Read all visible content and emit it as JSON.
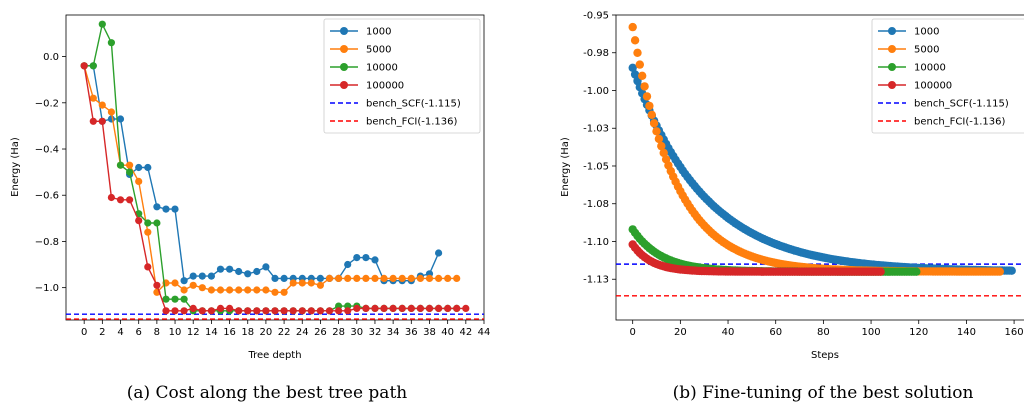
{
  "captions": {
    "left": "(a) Cost along the best tree path",
    "right": "(b) Fine-tuning of the best solution"
  },
  "colors": {
    "s1000": "#1f77b4",
    "s5000": "#ff7f0e",
    "s10000": "#2ca02c",
    "s100000": "#d62728",
    "scf": "#0000ff",
    "fci": "#ff0000"
  },
  "chart_data": [
    {
      "type": "line",
      "xlabel": "Tree depth",
      "ylabel": "Energy (Ha)",
      "xlim": [
        -2,
        44
      ],
      "ylim": [
        -1.14,
        0.18
      ],
      "xticks": [
        0,
        2,
        4,
        6,
        8,
        10,
        12,
        14,
        16,
        18,
        20,
        22,
        24,
        26,
        28,
        30,
        32,
        34,
        36,
        38,
        40,
        42,
        44
      ],
      "yticks": [
        0.0,
        -0.2,
        -0.4,
        -0.6,
        -0.8,
        -1.0
      ],
      "ytick_labels": [
        "0.0",
        "−0.2",
        "−0.4",
        "−0.6",
        "−0.8",
        "−1.0"
      ],
      "grid": false,
      "legend_position": "top-right",
      "series": [
        {
          "name": "1000",
          "color": "#1f77b4",
          "x": [
            0,
            1,
            2,
            3,
            4,
            5,
            6,
            7,
            8,
            9,
            10,
            11,
            12,
            13,
            14,
            15,
            16,
            17,
            18,
            19,
            20,
            21,
            22,
            23,
            24,
            25,
            26,
            27,
            28,
            29,
            30,
            31,
            32,
            33,
            34,
            35,
            36,
            37,
            38,
            39
          ],
          "values": [
            -0.04,
            -0.04,
            -0.28,
            -0.27,
            -0.27,
            -0.51,
            -0.48,
            -0.48,
            -0.65,
            -0.66,
            -0.66,
            -0.97,
            -0.95,
            -0.95,
            -0.95,
            -0.92,
            -0.92,
            -0.93,
            -0.94,
            -0.93,
            -0.91,
            -0.96,
            -0.96,
            -0.96,
            -0.96,
            -0.96,
            -0.96,
            -0.96,
            -0.96,
            -0.9,
            -0.87,
            -0.87,
            -0.88,
            -0.97,
            -0.97,
            -0.97,
            -0.97,
            -0.95,
            -0.94,
            -0.85
          ]
        },
        {
          "name": "5000",
          "color": "#ff7f0e",
          "x": [
            0,
            1,
            2,
            3,
            4,
            5,
            6,
            7,
            8,
            9,
            10,
            11,
            12,
            13,
            14,
            15,
            16,
            17,
            18,
            19,
            20,
            21,
            22,
            23,
            24,
            25,
            26,
            27,
            28,
            29,
            30,
            31,
            32,
            33,
            34,
            35,
            36,
            37,
            38,
            39,
            40,
            41
          ],
          "values": [
            -0.04,
            -0.18,
            -0.21,
            -0.24,
            -0.47,
            -0.47,
            -0.54,
            -0.76,
            -1.02,
            -0.98,
            -0.98,
            -1.01,
            -0.99,
            -1.0,
            -1.01,
            -1.01,
            -1.01,
            -1.01,
            -1.01,
            -1.01,
            -1.01,
            -1.02,
            -1.02,
            -0.98,
            -0.98,
            -0.98,
            -0.99,
            -0.96,
            -0.96,
            -0.96,
            -0.96,
            -0.96,
            -0.96,
            -0.96,
            -0.96,
            -0.96,
            -0.96,
            -0.96,
            -0.96,
            -0.96,
            -0.96,
            -0.96
          ]
        },
        {
          "name": "10000",
          "color": "#2ca02c",
          "x": [
            0,
            1,
            2,
            3,
            4,
            5,
            6,
            7,
            8,
            9,
            10,
            11,
            12,
            13,
            14,
            15,
            16,
            17,
            18,
            19,
            20,
            21,
            22,
            23,
            24,
            25,
            26,
            27,
            28,
            29,
            30,
            31,
            32,
            33,
            34,
            35,
            36,
            37,
            38,
            39,
            40,
            41
          ],
          "values": [
            -0.04,
            -0.04,
            0.14,
            0.06,
            -0.47,
            -0.5,
            -0.68,
            -0.72,
            -0.72,
            -1.05,
            -1.05,
            -1.05,
            -1.1,
            -1.1,
            -1.1,
            -1.1,
            -1.1,
            -1.1,
            -1.1,
            -1.1,
            -1.1,
            -1.1,
            -1.1,
            -1.1,
            -1.1,
            -1.1,
            -1.1,
            -1.1,
            -1.08,
            -1.08,
            -1.08,
            -1.09,
            -1.09,
            -1.09,
            -1.09,
            -1.09,
            -1.09,
            -1.09,
            -1.09,
            -1.09,
            -1.09,
            -1.09
          ]
        },
        {
          "name": "100000",
          "color": "#d62728",
          "x": [
            0,
            1,
            2,
            3,
            4,
            5,
            6,
            7,
            8,
            9,
            10,
            11,
            12,
            13,
            14,
            15,
            16,
            17,
            18,
            19,
            20,
            21,
            22,
            23,
            24,
            25,
            26,
            27,
            28,
            29,
            30,
            31,
            32,
            33,
            34,
            35,
            36,
            37,
            38,
            39,
            40,
            41,
            42
          ],
          "values": [
            -0.04,
            -0.28,
            -0.28,
            -0.61,
            -0.62,
            -0.62,
            -0.71,
            -0.91,
            -0.99,
            -1.1,
            -1.1,
            -1.1,
            -1.09,
            -1.1,
            -1.1,
            -1.09,
            -1.09,
            -1.1,
            -1.1,
            -1.1,
            -1.1,
            -1.1,
            -1.1,
            -1.1,
            -1.1,
            -1.1,
            -1.1,
            -1.1,
            -1.1,
            -1.1,
            -1.09,
            -1.09,
            -1.09,
            -1.09,
            -1.09,
            -1.09,
            -1.09,
            -1.09,
            -1.09,
            -1.09,
            -1.09,
            -1.09,
            -1.09
          ]
        },
        {
          "name": "bench_SCF(-1.115)",
          "color": "#0000ff",
          "dashed": true,
          "hline": -1.115
        },
        {
          "name": "bench_FCI(-1.136)",
          "color": "#ff0000",
          "dashed": true,
          "hline": -1.136
        }
      ]
    },
    {
      "type": "scatter",
      "xlabel": "Steps",
      "ylabel": "Energy (Ha)",
      "xlim": [
        -7,
        165
      ],
      "ylim": [
        -1.152,
        -0.95
      ],
      "xticks": [
        0,
        20,
        40,
        60,
        80,
        100,
        120,
        140,
        160
      ],
      "xtick_labels": [
        "0",
        "20",
        "40",
        "60",
        "80",
        "100",
        "120",
        "140",
        "160"
      ],
      "yticks": [
        -0.95,
        -0.975,
        -1.0,
        -1.025,
        -1.05,
        -1.075,
        -1.1,
        -1.125
      ],
      "ytick_labels": [
        "-0.95",
        "-0.98",
        "-1.00",
        "-1.03",
        "-1.05",
        "-1.08",
        "-1.10",
        "-1.13"
      ],
      "grid": false,
      "legend_position": "top-right",
      "series": [
        {
          "name": "1000",
          "color": "#1f77b4",
          "curve": {
            "start": -0.985,
            "final": -1.12,
            "tau": 30,
            "n": 160
          }
        },
        {
          "name": "5000",
          "color": "#ff7f0e",
          "curve": {
            "start": -0.958,
            "final": -1.12,
            "tau": 18,
            "n": 155
          }
        },
        {
          "name": "10000",
          "color": "#2ca02c",
          "curve": {
            "start": -1.092,
            "final": -1.12,
            "tau": 12,
            "n": 120
          }
        },
        {
          "name": "100000",
          "color": "#d62728",
          "curve": {
            "start": -1.102,
            "final": -1.12,
            "tau": 8,
            "n": 105
          }
        },
        {
          "name": "bench_SCF(-1.115)",
          "color": "#0000ff",
          "dashed": true,
          "hline": -1.115
        },
        {
          "name": "bench_FCI(-1.136)",
          "color": "#ff0000",
          "dashed": true,
          "hline": -1.136
        }
      ]
    }
  ]
}
